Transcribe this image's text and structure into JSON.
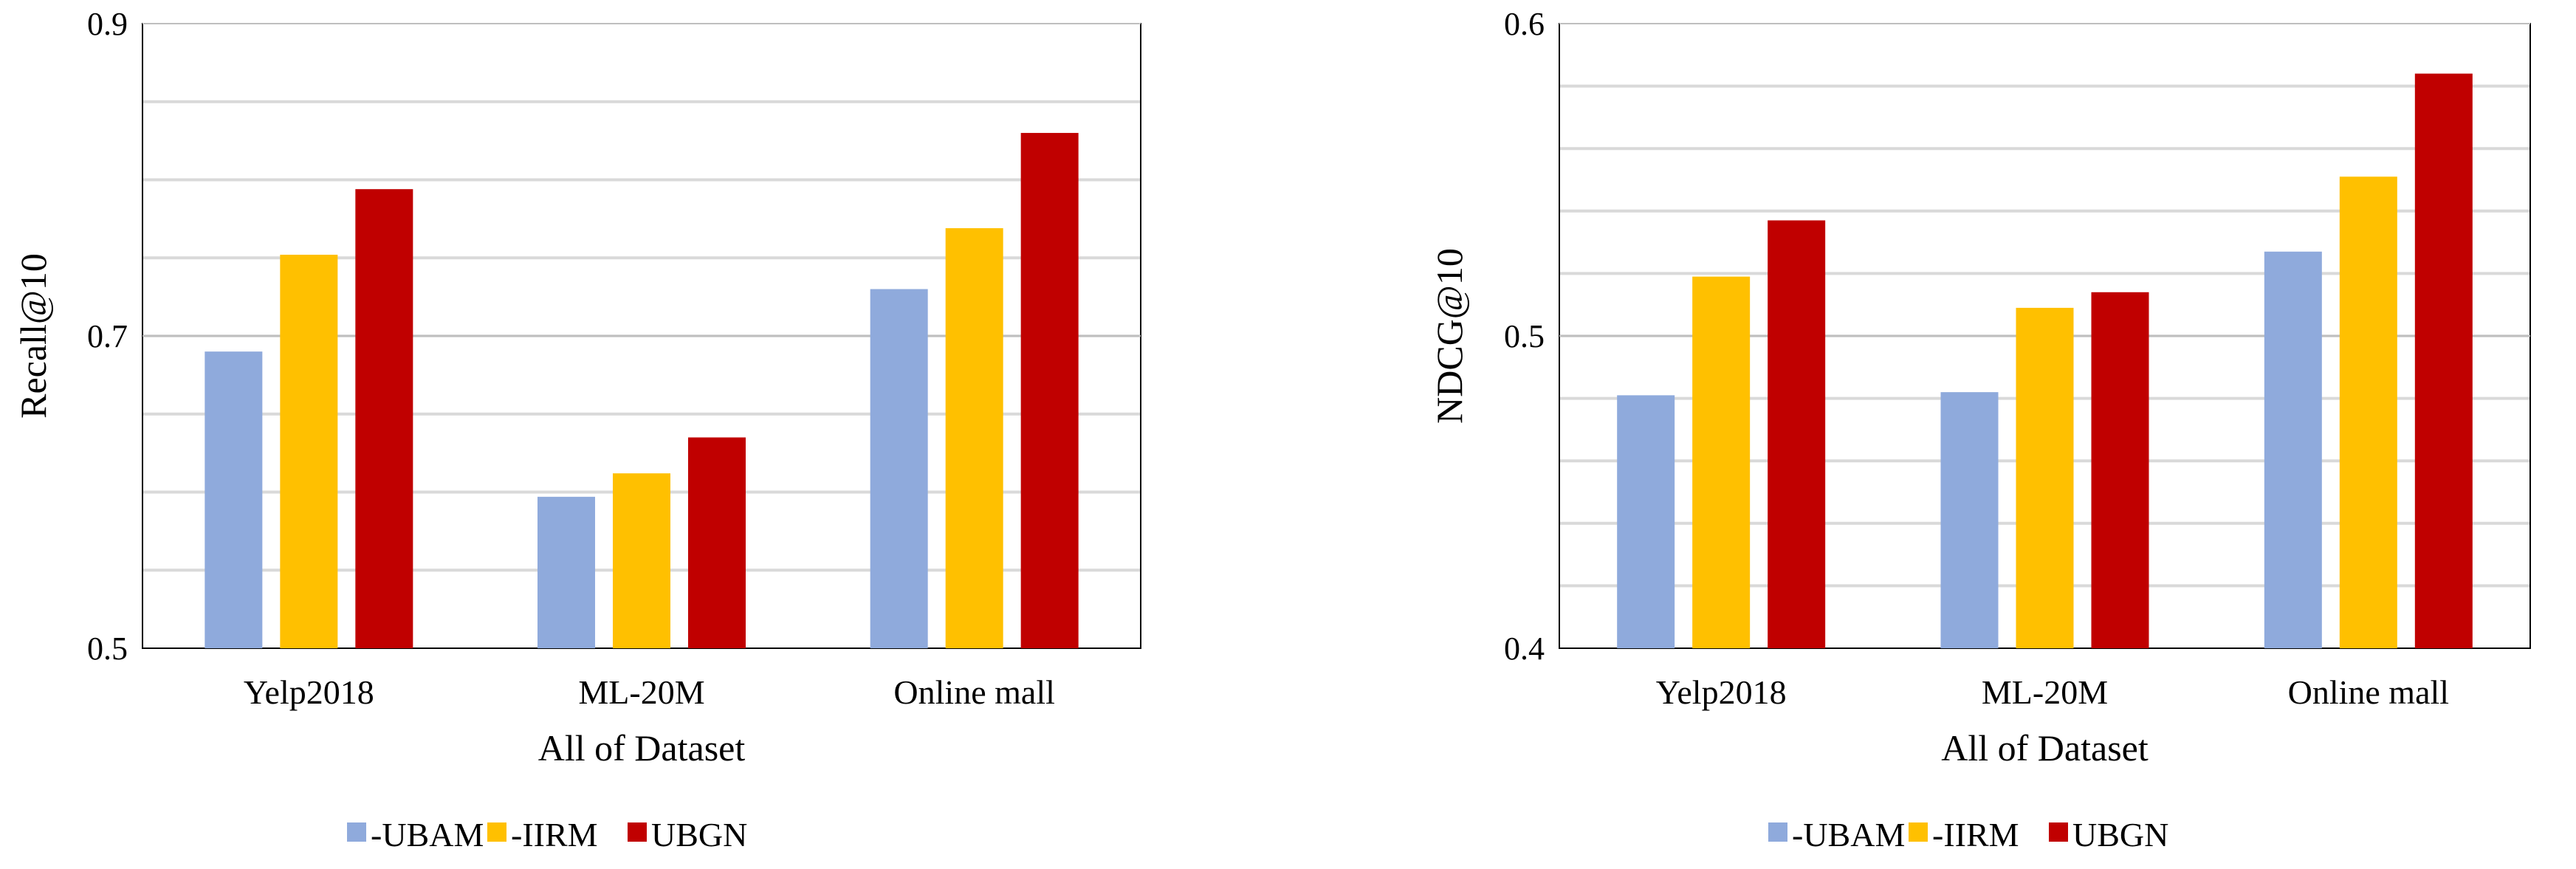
{
  "chart_data": [
    {
      "type": "bar",
      "xlabel": "All of Dataset",
      "ylabel": "Recall@10",
      "ylim": [
        0.5,
        0.9
      ],
      "yticks": [
        "0.5",
        "0.7",
        "0.9"
      ],
      "minor_step": 0.05,
      "categories": [
        "Yelp2018",
        "ML-20M",
        "Online mall"
      ],
      "series": [
        {
          "name": "-UBAM",
          "color": "#8FAADC",
          "values": [
            0.69,
            0.597,
            0.73
          ]
        },
        {
          "name": "-IIRM",
          "color": "#FFC000",
          "values": [
            0.752,
            0.612,
            0.769
          ]
        },
        {
          "name": "UBGN",
          "color": "#C00000",
          "values": [
            0.794,
            0.635,
            0.83
          ]
        }
      ],
      "grid": true,
      "legend": "bottom"
    },
    {
      "type": "bar",
      "xlabel": "All of Dataset",
      "ylabel": "NDCG@10",
      "ylim": [
        0.4,
        0.6
      ],
      "yticks": [
        "0.4",
        "0.5",
        "0.6"
      ],
      "minor_step": 0.02,
      "categories": [
        "Yelp2018",
        "ML-20M",
        "Online mall"
      ],
      "series": [
        {
          "name": "-UBAM",
          "color": "#8FAADC",
          "values": [
            0.481,
            0.482,
            0.527
          ]
        },
        {
          "name": "-IIRM",
          "color": "#FFC000",
          "values": [
            0.519,
            0.509,
            0.551
          ]
        },
        {
          "name": "UBGN",
          "color": "#C00000",
          "values": [
            0.537,
            0.514,
            0.584
          ]
        }
      ],
      "grid": true,
      "legend": "bottom"
    }
  ]
}
